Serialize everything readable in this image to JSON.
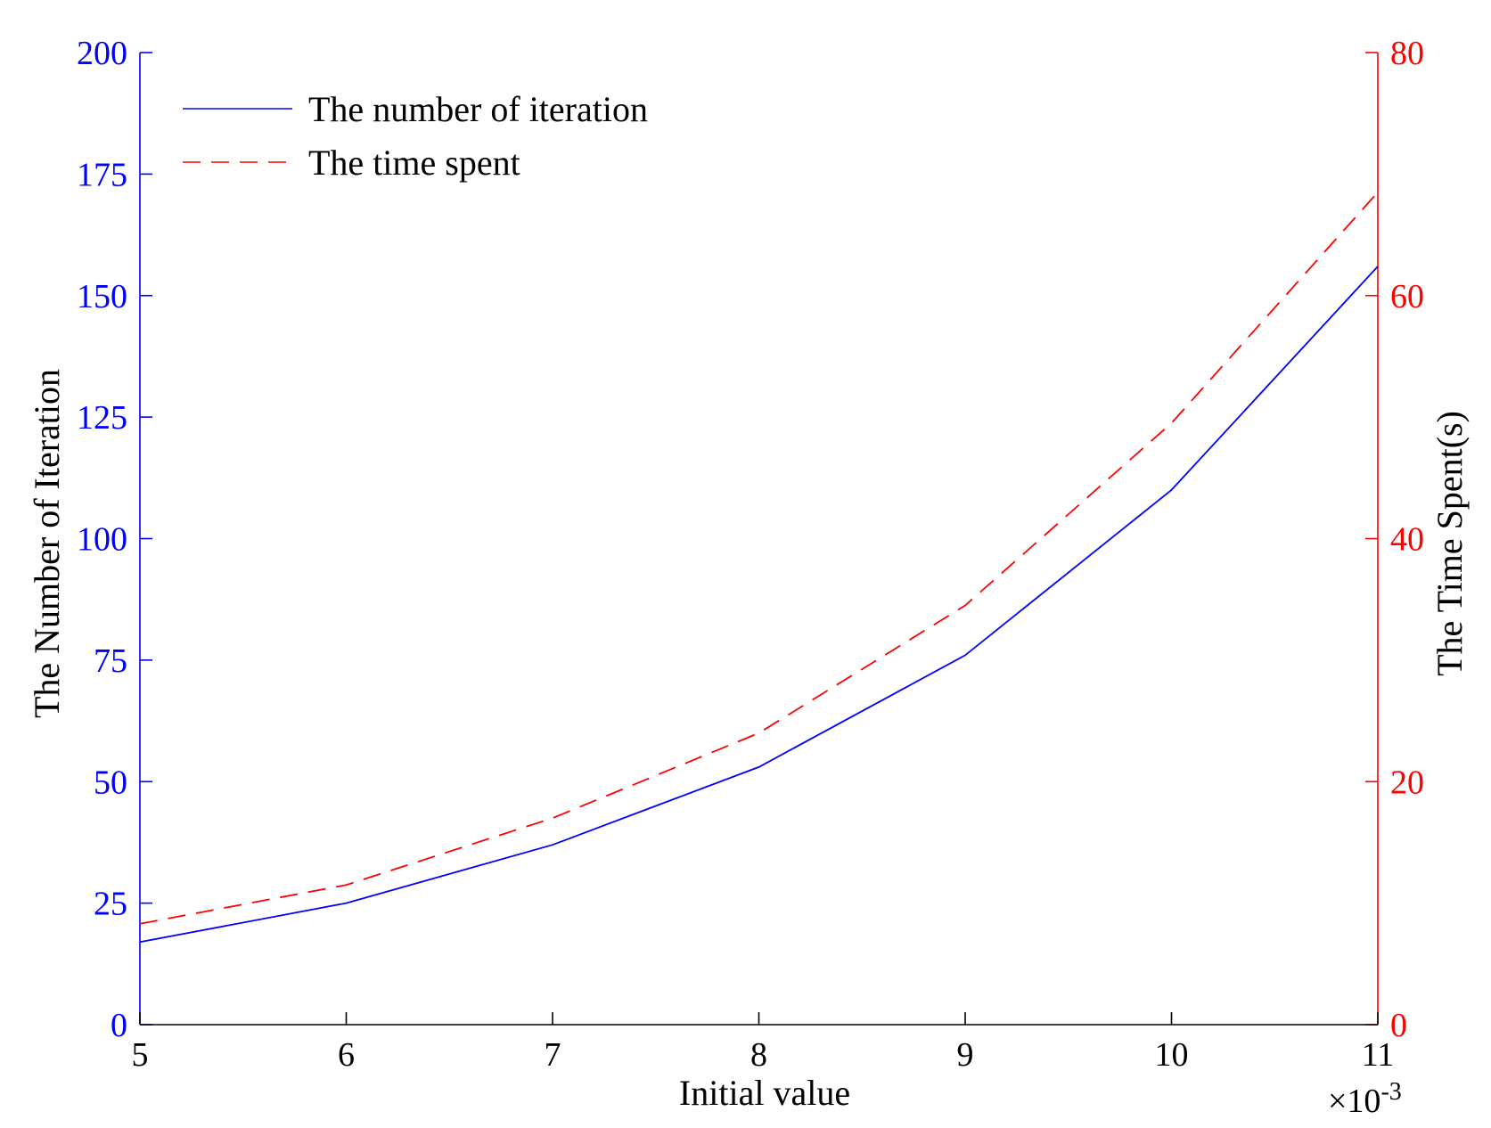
{
  "chart_data": {
    "type": "line",
    "xlabel": "Initial value",
    "x_multiplier_label": "×10",
    "x_multiplier_exp": "-3",
    "y_left_label": "The Number of Iteration",
    "y_right_label": "The Time Spent(s)",
    "x_ticks": [
      "5",
      "6",
      "7",
      "8",
      "9",
      "10",
      "11"
    ],
    "y_left_ticks": [
      "0",
      "25",
      "50",
      "75",
      "100",
      "125",
      "150",
      "175",
      "200"
    ],
    "y_right_ticks": [
      "0",
      "20",
      "40",
      "60",
      "80"
    ],
    "xlim": [
      5,
      11
    ],
    "y_left_lim": [
      0,
      200
    ],
    "y_right_lim": [
      0,
      80
    ],
    "x": [
      5,
      6,
      7,
      8,
      9,
      10,
      11
    ],
    "series": [
      {
        "name": "The number of iteration",
        "axis": "left",
        "style": "solid",
        "color": "#0000ff",
        "values": [
          17,
          25,
          37,
          53,
          76,
          110,
          156
        ]
      },
      {
        "name": "The time spent",
        "axis": "right",
        "style": "dashed",
        "color": "#ff0000",
        "values": [
          8.3,
          11.5,
          17,
          24,
          34.5,
          49.5,
          68.5
        ]
      }
    ],
    "legend_position": "top-left",
    "grid": false,
    "left_axis_color": "#0000ff",
    "right_axis_color": "#ff0000"
  }
}
